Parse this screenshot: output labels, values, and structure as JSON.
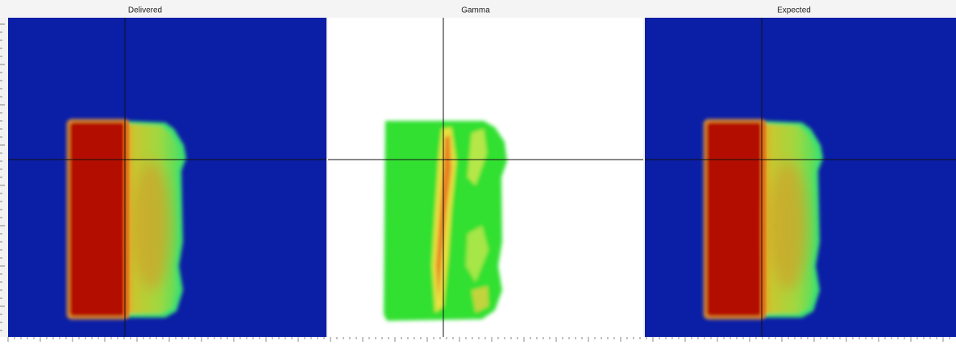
{
  "panels": [
    {
      "title": "Delivered"
    },
    {
      "title": "Gamma"
    },
    {
      "title": "Expected"
    }
  ]
}
